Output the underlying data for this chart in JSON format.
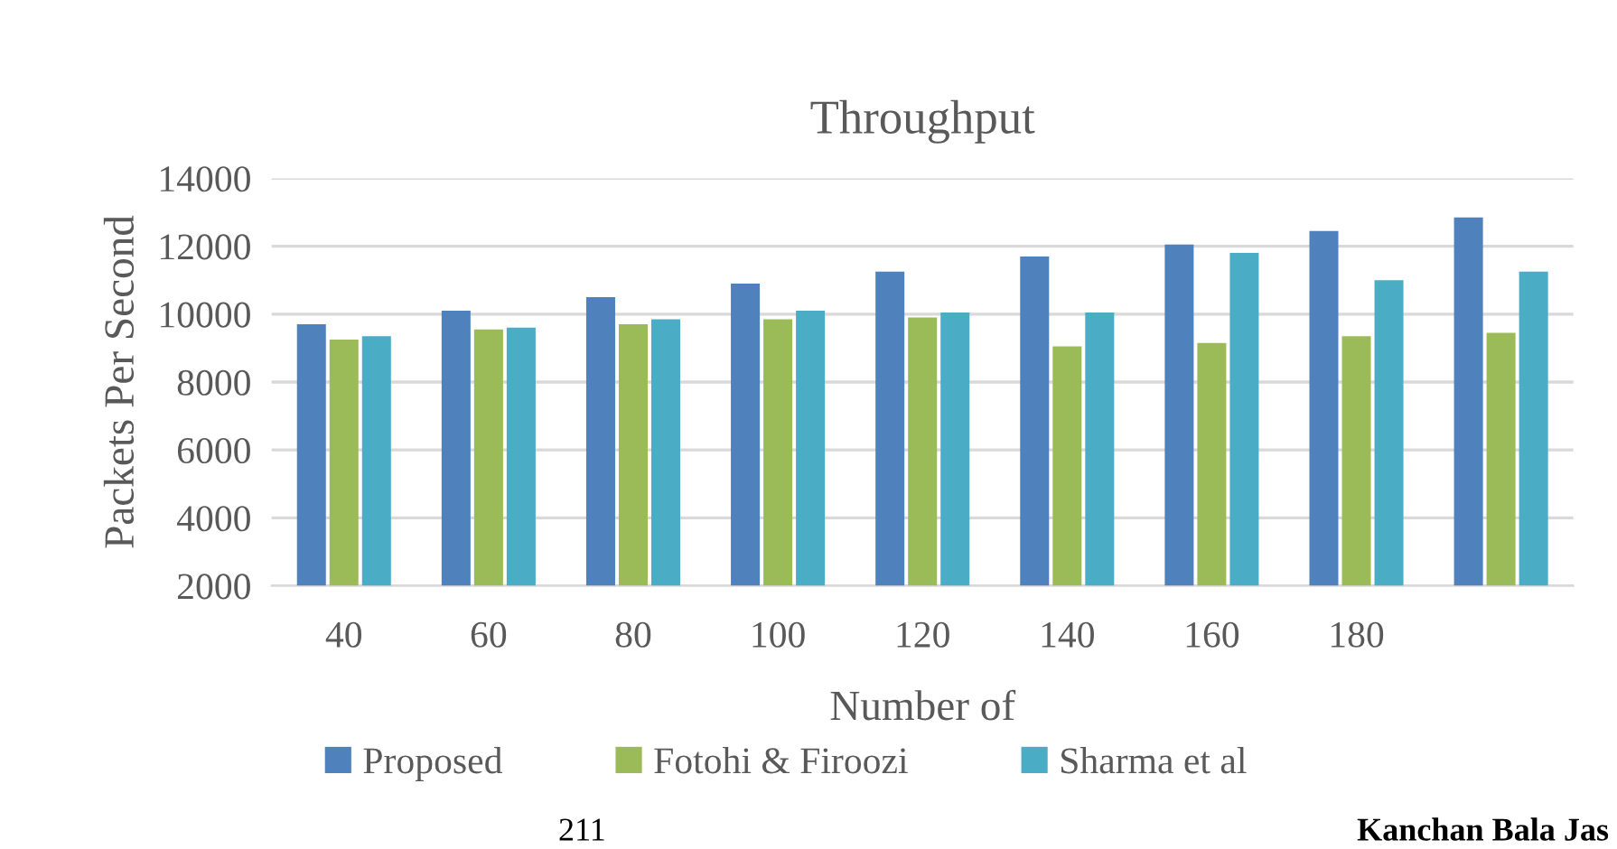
{
  "chart_data": {
    "type": "bar",
    "title": "Throughput",
    "xlabel": "Number of",
    "ylabel": "Packets Per Second",
    "categories": [
      "40",
      "60",
      "80",
      "100",
      "120",
      "140",
      "160",
      "180",
      null
    ],
    "series": [
      {
        "name": "Proposed",
        "color": "#4f81bd",
        "values": [
          9700,
          10100,
          10500,
          10900,
          11250,
          11700,
          12050,
          12450,
          12850
        ]
      },
      {
        "name": "Fotohi & Firoozi",
        "color": "#9bbb59",
        "values": [
          9250,
          9550,
          9700,
          9850,
          9900,
          9050,
          9150,
          9350,
          9450
        ]
      },
      {
        "name": "Sharma et al",
        "color": "#4bacc6",
        "values": [
          9350,
          9600,
          9850,
          10100,
          10050,
          10050,
          11800,
          11000,
          11250
        ]
      }
    ],
    "ylim": [
      2000,
      14000
    ],
    "yticks": [
      2000,
      4000,
      6000,
      8000,
      10000,
      12000,
      14000
    ],
    "grid": "y",
    "legend": "bottom",
    "annotations": [
      "211",
      "Kanchan Bala Jas"
    ]
  }
}
